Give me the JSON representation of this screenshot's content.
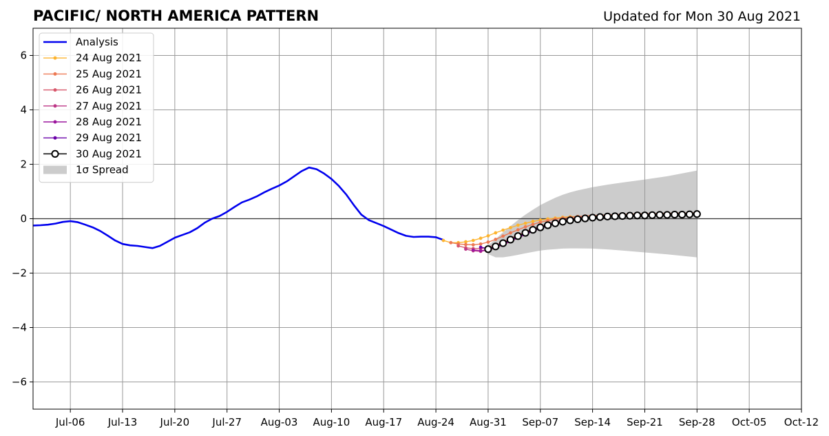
{
  "chart_data": {
    "type": "line",
    "title": "PACIFIC/ NORTH AMERICA PATTERN",
    "subtitle": "Updated for Mon 30 Aug 2021",
    "xlabel": "",
    "ylabel": "",
    "x_range": [
      "2021-07-01",
      "2021-10-12"
    ],
    "ylim": [
      -7,
      7
    ],
    "grid": true,
    "legend_position": "top-left",
    "x_ticks": [
      {
        "date": "2021-07-06",
        "label": "Jul-06"
      },
      {
        "date": "2021-07-13",
        "label": "Jul-13"
      },
      {
        "date": "2021-07-20",
        "label": "Jul-20"
      },
      {
        "date": "2021-07-27",
        "label": "Jul-27"
      },
      {
        "date": "2021-08-03",
        "label": "Aug-03"
      },
      {
        "date": "2021-08-10",
        "label": "Aug-10"
      },
      {
        "date": "2021-08-17",
        "label": "Aug-17"
      },
      {
        "date": "2021-08-24",
        "label": "Aug-24"
      },
      {
        "date": "2021-08-31",
        "label": "Aug-31"
      },
      {
        "date": "2021-09-07",
        "label": "Sep-07"
      },
      {
        "date": "2021-09-14",
        "label": "Sep-14"
      },
      {
        "date": "2021-09-21",
        "label": "Sep-21"
      },
      {
        "date": "2021-09-28",
        "label": "Sep-28"
      },
      {
        "date": "2021-10-05",
        "label": "Oct-05"
      },
      {
        "date": "2021-10-12",
        "label": "Oct-12"
      }
    ],
    "y_ticks": [
      {
        "value": 6,
        "label": "6"
      },
      {
        "value": 4,
        "label": "4"
      },
      {
        "value": 2,
        "label": "2"
      },
      {
        "value": 0,
        "label": "0"
      },
      {
        "value": -2,
        "label": "−2"
      },
      {
        "value": -4,
        "label": "−4"
      },
      {
        "value": -6,
        "label": "−6"
      }
    ],
    "series": [
      {
        "name": "Analysis",
        "color": "#0000ee",
        "style": "thick-line",
        "points": [
          [
            "2021-07-01",
            -0.25
          ],
          [
            "2021-07-02",
            -0.24
          ],
          [
            "2021-07-03",
            -0.22
          ],
          [
            "2021-07-04",
            -0.18
          ],
          [
            "2021-07-05",
            -0.12
          ],
          [
            "2021-07-06",
            -0.09
          ],
          [
            "2021-07-07",
            -0.13
          ],
          [
            "2021-07-08",
            -0.22
          ],
          [
            "2021-07-09",
            -0.32
          ],
          [
            "2021-07-10",
            -0.45
          ],
          [
            "2021-07-11",
            -0.62
          ],
          [
            "2021-07-12",
            -0.8
          ],
          [
            "2021-07-13",
            -0.93
          ],
          [
            "2021-07-14",
            -0.98
          ],
          [
            "2021-07-15",
            -1.0
          ],
          [
            "2021-07-16",
            -1.04
          ],
          [
            "2021-07-17",
            -1.08
          ],
          [
            "2021-07-18",
            -1.0
          ],
          [
            "2021-07-19",
            -0.85
          ],
          [
            "2021-07-20",
            -0.7
          ],
          [
            "2021-07-21",
            -0.6
          ],
          [
            "2021-07-22",
            -0.5
          ],
          [
            "2021-07-23",
            -0.35
          ],
          [
            "2021-07-24",
            -0.15
          ],
          [
            "2021-07-25",
            0.0
          ],
          [
            "2021-07-26",
            0.1
          ],
          [
            "2021-07-27",
            0.25
          ],
          [
            "2021-07-28",
            0.43
          ],
          [
            "2021-07-29",
            0.6
          ],
          [
            "2021-07-30",
            0.7
          ],
          [
            "2021-07-31",
            0.82
          ],
          [
            "2021-08-01",
            0.97
          ],
          [
            "2021-08-02",
            1.1
          ],
          [
            "2021-08-03",
            1.22
          ],
          [
            "2021-08-04",
            1.37
          ],
          [
            "2021-08-05",
            1.56
          ],
          [
            "2021-08-06",
            1.75
          ],
          [
            "2021-08-07",
            1.88
          ],
          [
            "2021-08-08",
            1.82
          ],
          [
            "2021-08-09",
            1.66
          ],
          [
            "2021-08-10",
            1.46
          ],
          [
            "2021-08-11",
            1.2
          ],
          [
            "2021-08-12",
            0.88
          ],
          [
            "2021-08-13",
            0.5
          ],
          [
            "2021-08-14",
            0.15
          ],
          [
            "2021-08-15",
            -0.05
          ],
          [
            "2021-08-16",
            -0.16
          ],
          [
            "2021-08-17",
            -0.27
          ],
          [
            "2021-08-18",
            -0.4
          ],
          [
            "2021-08-19",
            -0.53
          ],
          [
            "2021-08-20",
            -0.63
          ],
          [
            "2021-08-21",
            -0.67
          ],
          [
            "2021-08-22",
            -0.66
          ],
          [
            "2021-08-23",
            -0.66
          ],
          [
            "2021-08-24",
            -0.68
          ],
          [
            "2021-08-25",
            -0.78
          ]
        ]
      },
      {
        "name": "24 Aug 2021",
        "color": "#fdb42f",
        "style": "small-markers",
        "points": [
          [
            "2021-08-25",
            -0.8
          ],
          [
            "2021-08-26",
            -0.88
          ],
          [
            "2021-08-27",
            -0.88
          ],
          [
            "2021-08-28",
            -0.85
          ],
          [
            "2021-08-29",
            -0.8
          ],
          [
            "2021-08-30",
            -0.72
          ],
          [
            "2021-08-31",
            -0.63
          ],
          [
            "2021-09-01",
            -0.52
          ],
          [
            "2021-09-02",
            -0.42
          ],
          [
            "2021-09-03",
            -0.33
          ],
          [
            "2021-09-04",
            -0.24
          ],
          [
            "2021-09-05",
            -0.17
          ],
          [
            "2021-09-06",
            -0.1
          ],
          [
            "2021-09-07",
            -0.05
          ],
          [
            "2021-09-08",
            -0.01
          ],
          [
            "2021-09-09",
            0.02
          ],
          [
            "2021-09-10",
            0.05
          ],
          [
            "2021-09-11",
            0.07
          ],
          [
            "2021-09-12",
            0.08
          ]
        ]
      },
      {
        "name": "25 Aug 2021",
        "color": "#ed7953",
        "style": "small-markers",
        "points": [
          [
            "2021-08-26",
            -0.88
          ],
          [
            "2021-08-27",
            -0.93
          ],
          [
            "2021-08-28",
            -0.95
          ],
          [
            "2021-08-29",
            -0.96
          ],
          [
            "2021-08-30",
            -0.93
          ],
          [
            "2021-08-31",
            -0.86
          ],
          [
            "2021-09-01",
            -0.76
          ],
          [
            "2021-09-02",
            -0.64
          ],
          [
            "2021-09-03",
            -0.52
          ],
          [
            "2021-09-04",
            -0.41
          ],
          [
            "2021-09-05",
            -0.3
          ],
          [
            "2021-09-06",
            -0.21
          ],
          [
            "2021-09-07",
            -0.13
          ],
          [
            "2021-09-08",
            -0.07
          ],
          [
            "2021-09-09",
            -0.02
          ],
          [
            "2021-09-10",
            0.02
          ],
          [
            "2021-09-11",
            0.05
          ],
          [
            "2021-09-12",
            0.08
          ],
          [
            "2021-09-13",
            0.1
          ],
          [
            "2021-09-14",
            0.12
          ],
          [
            "2021-09-15",
            0.13
          ],
          [
            "2021-09-16",
            0.14
          ],
          [
            "2021-09-17",
            0.15
          ],
          [
            "2021-09-18",
            0.16
          ],
          [
            "2021-09-19",
            0.17
          ],
          [
            "2021-09-20",
            0.18
          ],
          [
            "2021-09-21",
            0.18
          ],
          [
            "2021-09-22",
            0.19
          ],
          [
            "2021-09-23",
            0.19
          ],
          [
            "2021-09-24",
            0.2
          ],
          [
            "2021-09-25",
            0.2
          ],
          [
            "2021-09-26",
            0.21
          ],
          [
            "2021-09-27",
            0.21
          ],
          [
            "2021-09-28",
            0.22
          ]
        ]
      },
      {
        "name": "26 Aug 2021",
        "color": "#d8576b",
        "style": "small-markers",
        "points": [
          [
            "2021-08-27",
            -1.0
          ],
          [
            "2021-08-28",
            -1.07
          ],
          [
            "2021-08-29",
            -1.1
          ],
          [
            "2021-08-30",
            -1.1
          ],
          [
            "2021-08-31",
            -1.05
          ],
          [
            "2021-09-01",
            -0.96
          ],
          [
            "2021-09-02",
            -0.85
          ],
          [
            "2021-09-03",
            -0.72
          ],
          [
            "2021-09-04",
            -0.6
          ],
          [
            "2021-09-05",
            -0.48
          ],
          [
            "2021-09-06",
            -0.37
          ],
          [
            "2021-09-07",
            -0.27
          ],
          [
            "2021-09-08",
            -0.18
          ],
          [
            "2021-09-09",
            -0.11
          ],
          [
            "2021-09-10",
            -0.05
          ],
          [
            "2021-09-11",
            0.0
          ],
          [
            "2021-09-12",
            0.04
          ],
          [
            "2021-09-13",
            0.07
          ]
        ]
      },
      {
        "name": "27 Aug 2021",
        "color": "#bd3786",
        "style": "small-markers",
        "points": [
          [
            "2021-08-28",
            -1.12
          ],
          [
            "2021-08-29",
            -1.18
          ],
          [
            "2021-08-30",
            -1.2
          ],
          [
            "2021-08-31",
            -1.15
          ],
          [
            "2021-09-01",
            -1.07
          ],
          [
            "2021-09-02",
            -0.96
          ],
          [
            "2021-09-03",
            -0.84
          ],
          [
            "2021-09-04",
            -0.71
          ],
          [
            "2021-09-05",
            -0.58
          ],
          [
            "2021-09-06",
            -0.46
          ],
          [
            "2021-09-07",
            -0.35
          ],
          [
            "2021-09-08",
            -0.25
          ],
          [
            "2021-09-09",
            -0.17
          ],
          [
            "2021-09-10",
            -0.1
          ],
          [
            "2021-09-11",
            -0.04
          ]
        ]
      },
      {
        "name": "28 Aug 2021",
        "color": "#9c179e",
        "style": "small-markers",
        "points": [
          [
            "2021-08-29",
            -1.15
          ],
          [
            "2021-08-30",
            -1.18
          ],
          [
            "2021-08-31",
            -1.14
          ],
          [
            "2021-09-01",
            -1.05
          ],
          [
            "2021-09-02",
            -0.94
          ],
          [
            "2021-09-03",
            -0.82
          ],
          [
            "2021-09-04",
            -0.7
          ],
          [
            "2021-09-05",
            -0.58
          ],
          [
            "2021-09-06",
            -0.46
          ],
          [
            "2021-09-07",
            -0.36
          ],
          [
            "2021-09-08",
            -0.27
          ],
          [
            "2021-09-09",
            -0.19
          ],
          [
            "2021-09-10",
            -0.12
          ]
        ]
      },
      {
        "name": "29 Aug 2021",
        "color": "#6a00a8",
        "style": "small-markers",
        "points": [
          [
            "2021-08-30",
            -1.05
          ],
          [
            "2021-08-31",
            -1.1
          ],
          [
            "2021-09-01",
            -1.02
          ],
          [
            "2021-09-02",
            -0.92
          ],
          [
            "2021-09-03",
            -0.8
          ],
          [
            "2021-09-04",
            -0.68
          ],
          [
            "2021-09-05",
            -0.56
          ],
          [
            "2021-09-06",
            -0.45
          ]
        ]
      },
      {
        "name": "30 Aug 2021",
        "color": "#000000",
        "style": "big-open-markers",
        "points": [
          [
            "2021-08-31",
            -1.12
          ],
          [
            "2021-09-01",
            -1.02
          ],
          [
            "2021-09-02",
            -0.9
          ],
          [
            "2021-09-03",
            -0.77
          ],
          [
            "2021-09-04",
            -0.64
          ],
          [
            "2021-09-05",
            -0.52
          ],
          [
            "2021-09-06",
            -0.41
          ],
          [
            "2021-09-07",
            -0.32
          ],
          [
            "2021-09-08",
            -0.24
          ],
          [
            "2021-09-09",
            -0.17
          ],
          [
            "2021-09-10",
            -0.11
          ],
          [
            "2021-09-11",
            -0.06
          ],
          [
            "2021-09-12",
            -0.02
          ],
          [
            "2021-09-13",
            0.01
          ],
          [
            "2021-09-14",
            0.04
          ],
          [
            "2021-09-15",
            0.06
          ],
          [
            "2021-09-16",
            0.08
          ],
          [
            "2021-09-17",
            0.09
          ],
          [
            "2021-09-18",
            0.1
          ],
          [
            "2021-09-19",
            0.11
          ],
          [
            "2021-09-20",
            0.12
          ],
          [
            "2021-09-21",
            0.12
          ],
          [
            "2021-09-22",
            0.13
          ],
          [
            "2021-09-23",
            0.14
          ],
          [
            "2021-09-24",
            0.14
          ],
          [
            "2021-09-25",
            0.15
          ],
          [
            "2021-09-26",
            0.15
          ],
          [
            "2021-09-27",
            0.16
          ],
          [
            "2021-09-28",
            0.17
          ]
        ]
      }
    ],
    "spread": {
      "name": "1σ Spread",
      "color": "#cccccc",
      "points": [
        {
          "x": "2021-08-31",
          "upper": -0.98,
          "lower": -1.3
        },
        {
          "x": "2021-09-01",
          "upper": -0.75,
          "lower": -1.42
        },
        {
          "x": "2021-09-02",
          "upper": -0.5,
          "lower": -1.42
        },
        {
          "x": "2021-09-03",
          "upper": -0.27,
          "lower": -1.38
        },
        {
          "x": "2021-09-04",
          "upper": -0.05,
          "lower": -1.33
        },
        {
          "x": "2021-09-05",
          "upper": 0.15,
          "lower": -1.27
        },
        {
          "x": "2021-09-06",
          "upper": 0.33,
          "lower": -1.22
        },
        {
          "x": "2021-09-07",
          "upper": 0.5,
          "lower": -1.17
        },
        {
          "x": "2021-09-08",
          "upper": 0.64,
          "lower": -1.14
        },
        {
          "x": "2021-09-09",
          "upper": 0.77,
          "lower": -1.12
        },
        {
          "x": "2021-09-10",
          "upper": 0.88,
          "lower": -1.1
        },
        {
          "x": "2021-09-11",
          "upper": 0.97,
          "lower": -1.09
        },
        {
          "x": "2021-09-12",
          "upper": 1.04,
          "lower": -1.09
        },
        {
          "x": "2021-09-14",
          "upper": 1.16,
          "lower": -1.1
        },
        {
          "x": "2021-09-16",
          "upper": 1.25,
          "lower": -1.13
        },
        {
          "x": "2021-09-18",
          "upper": 1.33,
          "lower": -1.17
        },
        {
          "x": "2021-09-21",
          "upper": 1.44,
          "lower": -1.24
        },
        {
          "x": "2021-09-24",
          "upper": 1.56,
          "lower": -1.31
        },
        {
          "x": "2021-09-28",
          "upper": 1.77,
          "lower": -1.42
        }
      ]
    },
    "legend": [
      {
        "label": "Analysis",
        "series": "Analysis",
        "kind": "thick-line",
        "color": "#0000ee"
      },
      {
        "label": "24 Aug 2021",
        "series": "24 Aug 2021",
        "kind": "small-markers",
        "color": "#fdb42f"
      },
      {
        "label": "25 Aug 2021",
        "series": "25 Aug 2021",
        "kind": "small-markers",
        "color": "#ed7953"
      },
      {
        "label": "26 Aug 2021",
        "series": "26 Aug 2021",
        "kind": "small-markers",
        "color": "#d8576b"
      },
      {
        "label": "27 Aug 2021",
        "series": "27 Aug 2021",
        "kind": "small-markers",
        "color": "#bd3786"
      },
      {
        "label": "28 Aug 2021",
        "series": "28 Aug 2021",
        "kind": "small-markers",
        "color": "#9c179e"
      },
      {
        "label": "29 Aug 2021",
        "series": "29 Aug 2021",
        "kind": "small-markers",
        "color": "#6a00a8"
      },
      {
        "label": "30 Aug 2021",
        "series": "30 Aug 2021",
        "kind": "big-open-markers",
        "color": "#000000"
      },
      {
        "label": "1σ Spread",
        "series": "spread",
        "kind": "patch",
        "color": "#cccccc"
      }
    ]
  }
}
